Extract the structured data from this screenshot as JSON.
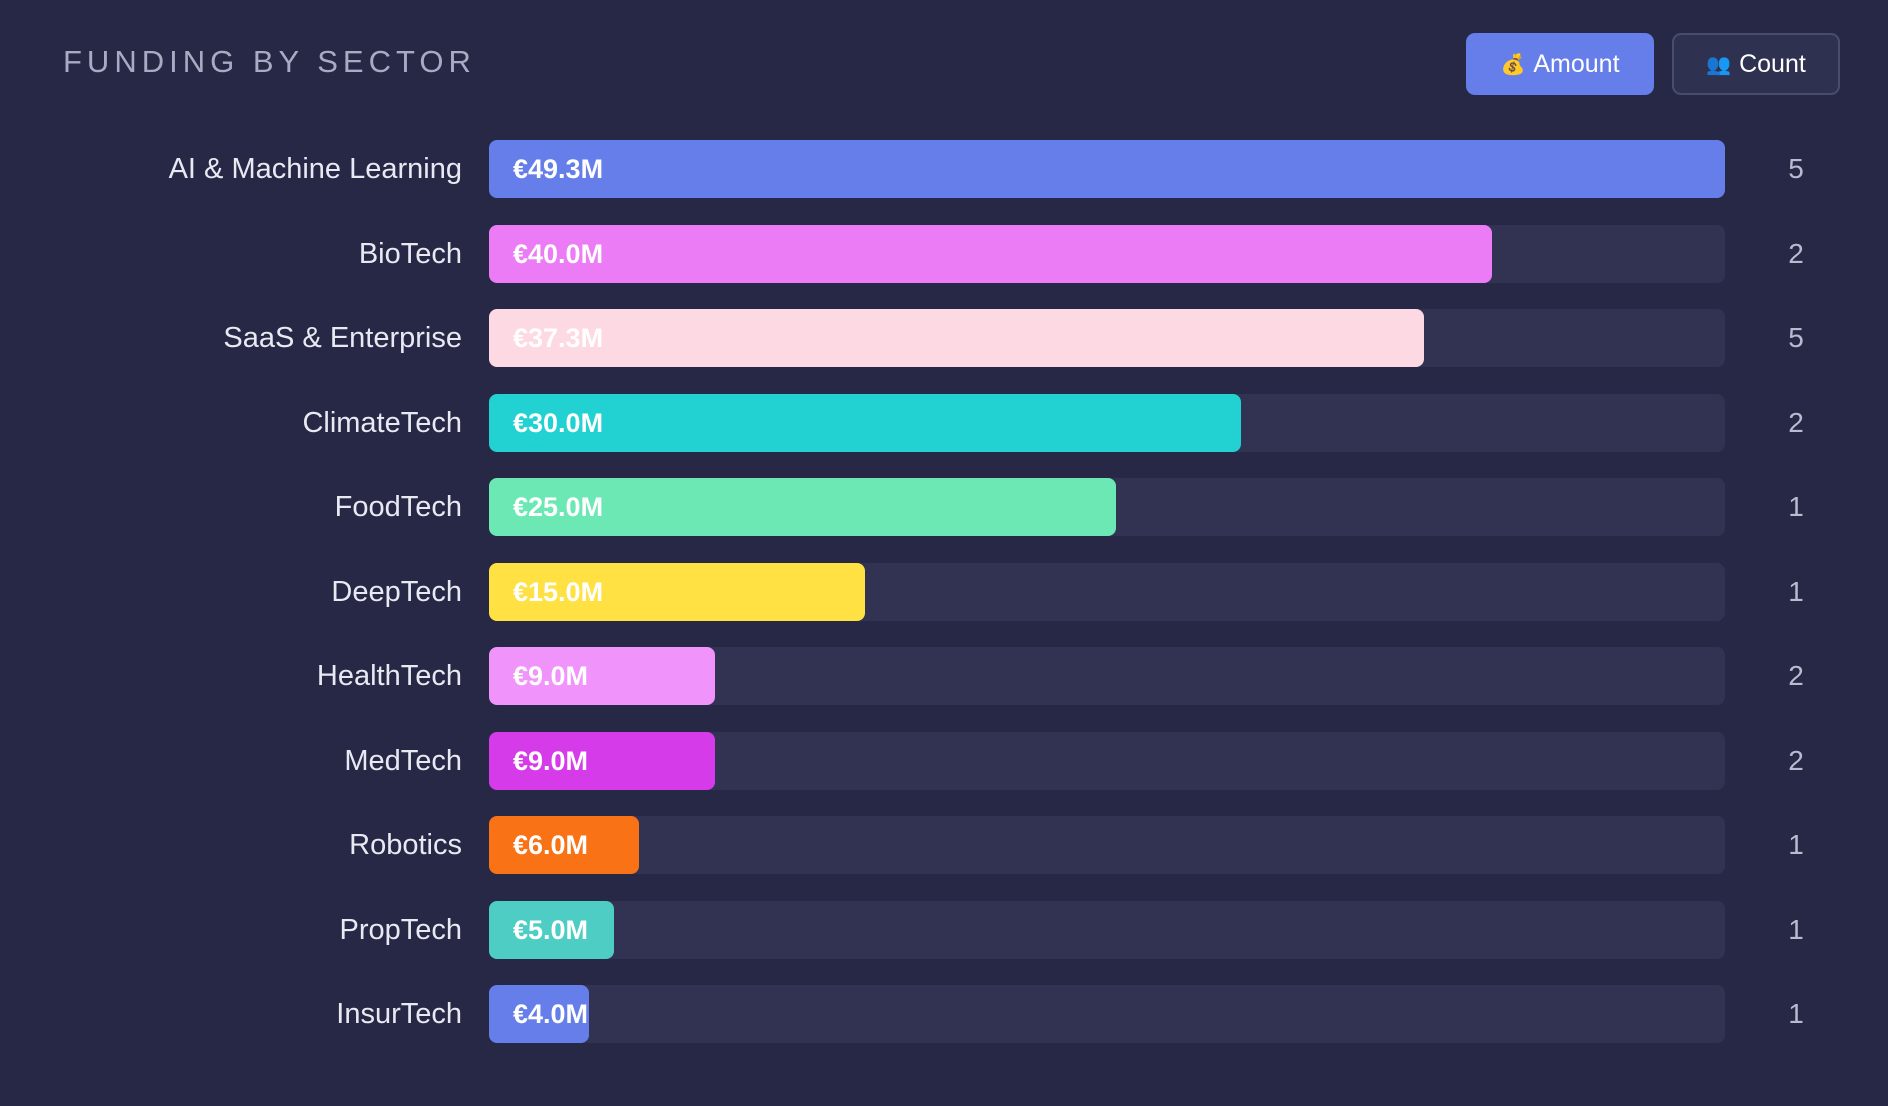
{
  "header": {
    "title": "FUNDING BY SECTOR"
  },
  "toggle": {
    "amount_icon": "money-bag-icon",
    "amount_label": "Amount",
    "count_icon": "people-icon",
    "count_label": "Count",
    "active": "Amount",
    "active_color": "#667eea"
  },
  "chart_data": {
    "type": "bar",
    "orientation": "horizontal",
    "title": "FUNDING BY SECTOR",
    "xlim": [
      0,
      49.3
    ],
    "categories": [
      "AI & Machine Learning",
      "BioTech",
      "SaaS & Enterprise",
      "ClimateTech",
      "FoodTech",
      "DeepTech",
      "HealthTech",
      "MedTech",
      "Robotics",
      "PropTech",
      "InsurTech"
    ],
    "values": [
      49.3,
      40.0,
      37.3,
      30.0,
      25.0,
      15.0,
      9.0,
      9.0,
      6.0,
      5.0,
      4.0
    ],
    "value_labels": [
      "€49.3M",
      "€40.0M",
      "€37.3M",
      "€30.0M",
      "€25.0M",
      "€15.0M",
      "€9.0M",
      "€9.0M",
      "€6.0M",
      "€5.0M",
      "€4.0M"
    ],
    "counts": [
      "5",
      "2",
      "5",
      "2",
      "1",
      "1",
      "2",
      "2",
      "1",
      "1",
      "1"
    ],
    "colors": [
      "#667eea",
      "#ec7bf6",
      "#fdd9e3",
      "#22d1d1",
      "#6ce8b5",
      "#ffe143",
      "#f093fb",
      "#d63bea",
      "#f97316",
      "#4ecdc4",
      "#667eea"
    ]
  }
}
